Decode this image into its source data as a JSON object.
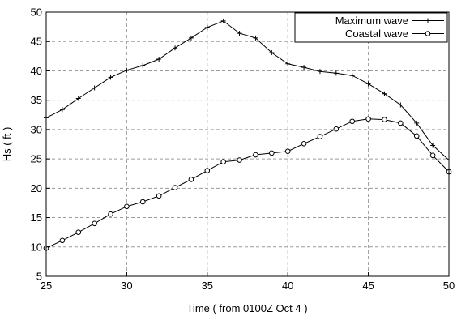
{
  "chart_data": {
    "type": "line",
    "title": "",
    "xlabel": "Time ( from 0100Z Oct 4 )",
    "ylabel": "Hs ( ft )",
    "xlim": [
      25,
      50
    ],
    "ylim": [
      5,
      50
    ],
    "xticks": [
      25,
      30,
      35,
      40,
      45,
      50
    ],
    "yticks": [
      5,
      10,
      15,
      20,
      25,
      30,
      35,
      40,
      45,
      50
    ],
    "grid": true,
    "grid_style": "dashed",
    "legend_position": "top-right",
    "x": [
      25,
      26,
      27,
      28,
      29,
      30,
      31,
      32,
      33,
      34,
      35,
      36,
      37,
      38,
      39,
      40,
      41,
      42,
      43,
      44,
      45,
      46,
      47,
      48,
      49,
      50
    ],
    "series": [
      {
        "name": "Maximum wave",
        "marker": "plus",
        "color": "#000000",
        "values": [
          32.0,
          33.4,
          35.3,
          37.1,
          38.9,
          40.1,
          40.9,
          42.0,
          43.9,
          45.6,
          47.4,
          48.5,
          46.4,
          45.6,
          43.1,
          41.2,
          40.6,
          39.9,
          39.6,
          39.2,
          37.8,
          36.1,
          34.2,
          31.1,
          27.3,
          24.8
        ]
      },
      {
        "name": "Coastal wave",
        "marker": "circle",
        "color": "#000000",
        "values": [
          9.8,
          11.1,
          12.5,
          14.0,
          15.6,
          16.9,
          17.7,
          18.7,
          20.1,
          21.5,
          23.0,
          24.5,
          24.8,
          25.7,
          26.0,
          26.3,
          27.6,
          28.8,
          30.1,
          31.4,
          31.8,
          31.7,
          31.1,
          28.9,
          25.6,
          22.8
        ]
      }
    ]
  }
}
